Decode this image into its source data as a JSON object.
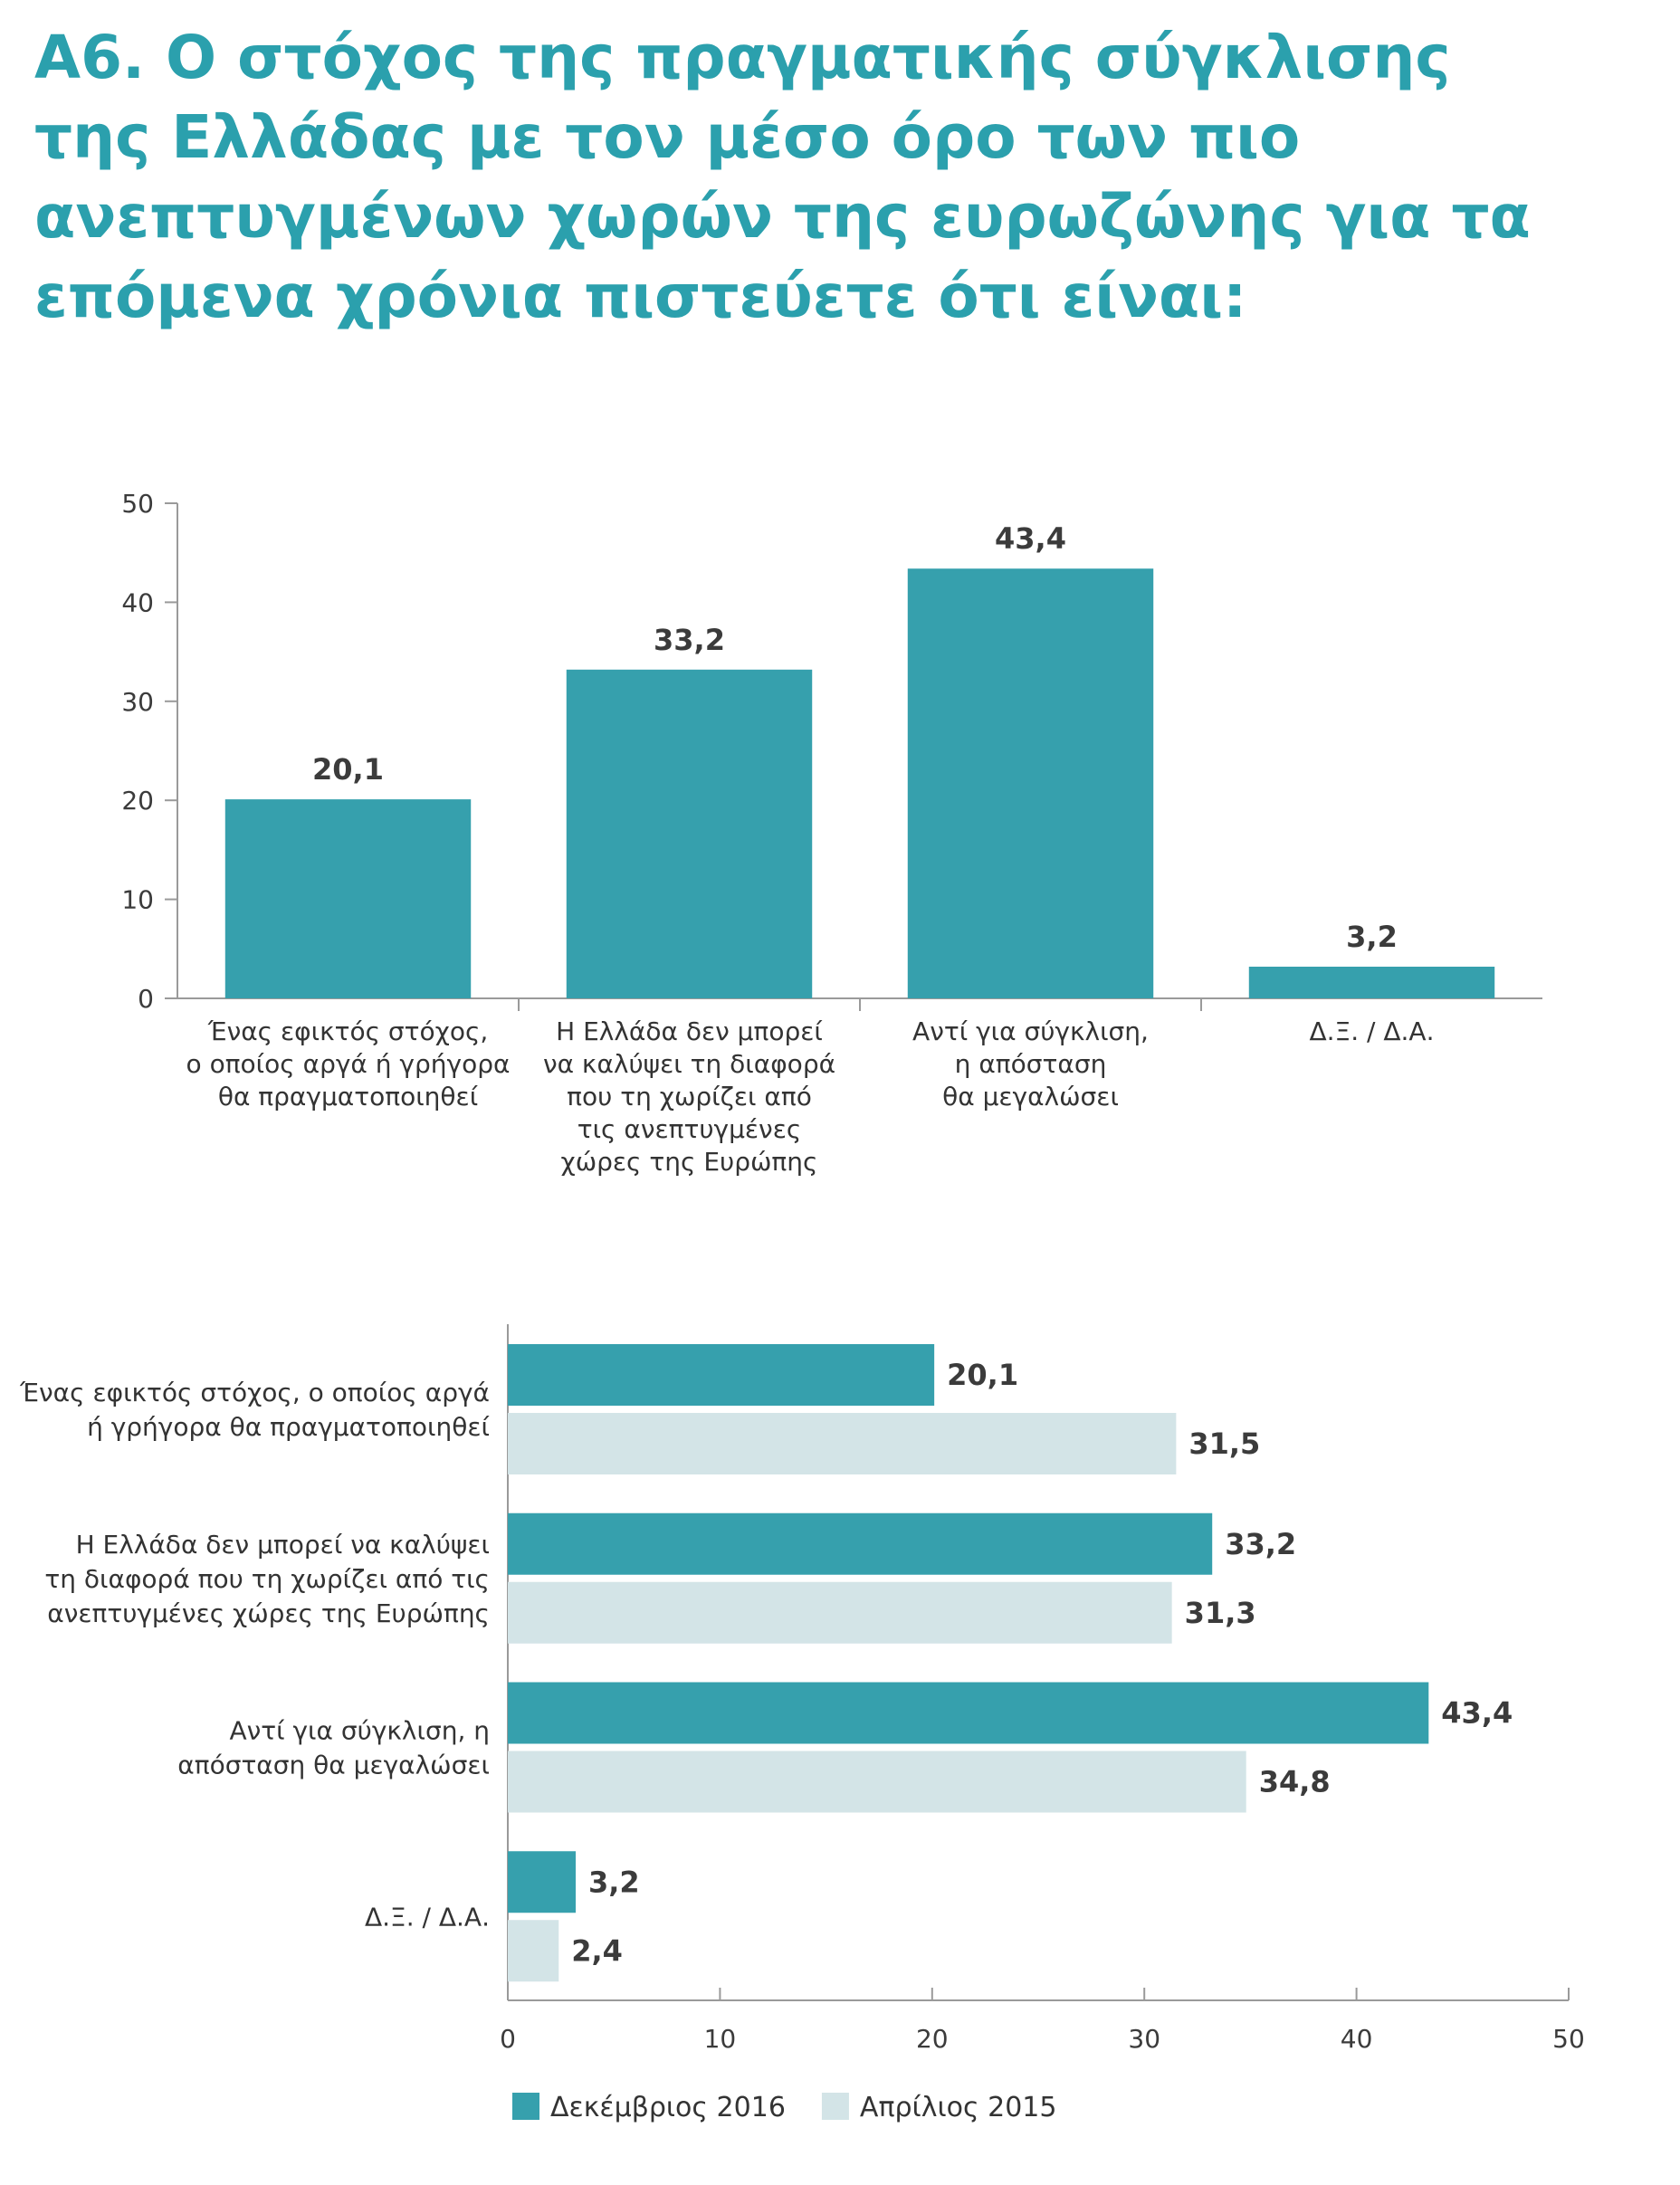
{
  "title_lines": [
    "Α6. Ο στόχος της πραγματικής σύγκλισης",
    "της Ελλάδας με τον μέσο όρο των πιο",
    "ανεπτυγμένων χωρών της ευρωζώνης για τα",
    "επόμενα χρόνια πιστεύετε ότι είναι:"
  ],
  "colors": {
    "title": "#2ba0ad",
    "dec2016": "#36a0ad",
    "apr2015": "#d3e4e7"
  },
  "chart_data": [
    {
      "type": "bar",
      "orientation": "vertical",
      "categories": [
        [
          "Ένας εφικτός στόχος,",
          "ο οποίος αργά ή γρήγορα",
          "θα πραγματοποιηθεί"
        ],
        [
          "Η Ελλάδα δεν μπορεί",
          "να καλύψει τη διαφορά",
          "που τη χωρίζει από",
          "τις ανεπτυγμένες",
          "χώρες της Ευρώπης"
        ],
        [
          "Αντί για σύγκλιση,",
          "η απόσταση",
          "θα μεγαλώσει"
        ],
        [
          "Δ.Ξ. / Δ.Α."
        ]
      ],
      "values": [
        20.1,
        33.2,
        43.4,
        3.2
      ],
      "value_labels": [
        "20,1",
        "33,2",
        "43,4",
        "3,2"
      ],
      "ylim": [
        0,
        50
      ],
      "yticks": [
        0,
        10,
        20,
        30,
        40,
        50
      ],
      "grid": false
    },
    {
      "type": "bar",
      "orientation": "horizontal",
      "categories": [
        [
          "Ένας εφικτός στόχος, ο οποίος αργά",
          "ή γρήγορα θα πραγματοποιηθεί"
        ],
        [
          "Η Ελλάδα δεν μπορεί να καλύψει",
          "τη διαφορά που τη χωρίζει από τις",
          "ανεπτυγμένες χώρες της Ευρώπης"
        ],
        [
          "Αντί για σύγκλιση, η",
          "απόσταση θα μεγαλώσει"
        ],
        [
          "Δ.Ξ. / Δ.Α."
        ]
      ],
      "series": [
        {
          "name": "Δεκέμβριος 2016",
          "values": [
            20.1,
            33.2,
            43.4,
            3.2
          ],
          "labels": [
            "20,1",
            "33,2",
            "43,4",
            "3,2"
          ]
        },
        {
          "name": "Απρίλιος 2015",
          "values": [
            31.5,
            31.3,
            34.8,
            2.4
          ],
          "labels": [
            "31,5",
            "31,3",
            "34,8",
            "2,4"
          ]
        }
      ],
      "xlim": [
        0,
        50
      ],
      "xticks": [
        0,
        10,
        20,
        30,
        40,
        50
      ],
      "legend_position": "bottom-left",
      "grid": false
    }
  ]
}
